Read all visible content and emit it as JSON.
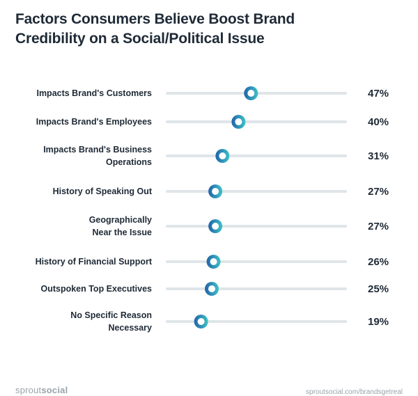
{
  "chart_data": {
    "type": "dot",
    "title_line1": "Factors Consumers Believe Boost Brand",
    "title_line2": "Credibility on a Social/Political Issue",
    "xlim": [
      0,
      100
    ],
    "categories": [
      [
        "Impacts Brand's Customers"
      ],
      [
        "Impacts Brand's Employees"
      ],
      [
        "Impacts Brand's Business",
        "Operations"
      ],
      [
        "History of Speaking Out"
      ],
      [
        "Geographically",
        "Near the Issue"
      ],
      [
        "History of Financial Support"
      ],
      [
        "Outspoken Top Executives"
      ],
      [
        "No Specific Reason",
        "Necessary"
      ]
    ],
    "values": [
      47,
      40,
      31,
      27,
      27,
      26,
      25,
      19
    ],
    "value_labels": [
      "47%",
      "40%",
      "31%",
      "27%",
      "27%",
      "26%",
      "25%",
      "19%"
    ],
    "colors": {
      "track": "#dfe5e8",
      "dot_dark": "#1f63a8",
      "dot_light": "#3fc3c7",
      "text": "#1f2a36"
    }
  },
  "footer": {
    "logo_light": "sprout",
    "logo_bold": "social",
    "url": "sproutsocial.com/brandsgetreal"
  }
}
